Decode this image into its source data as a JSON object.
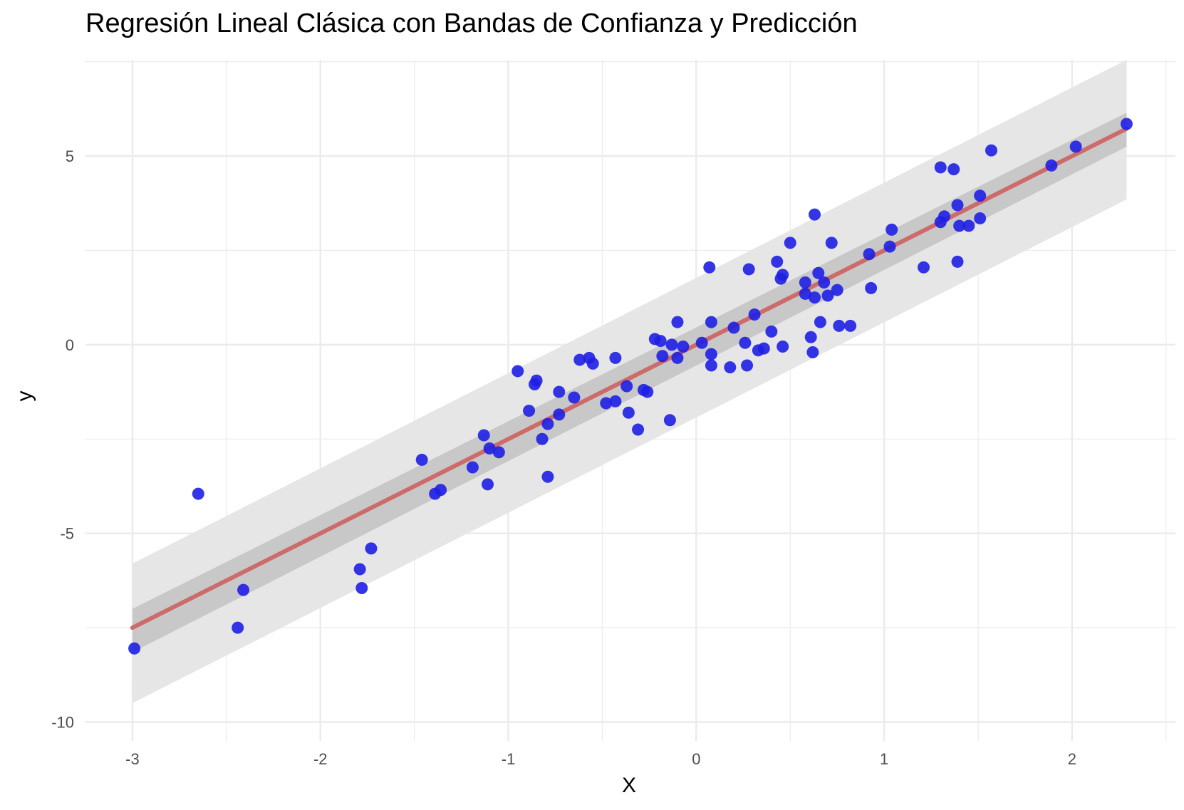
{
  "chart_data": {
    "type": "scatter",
    "title": "Regresión Lineal Clásica con Bandas de Confianza y Predicción",
    "xlabel": "X",
    "ylabel": "y",
    "xlim": [
      -3.25,
      2.55
    ],
    "ylim": [
      -10.5,
      7.55
    ],
    "x_ticks": [
      -3,
      -2,
      -1,
      0,
      1,
      2
    ],
    "x_tick_labels": [
      "-3",
      "-2",
      "-1",
      "0",
      "1",
      "2"
    ],
    "y_ticks": [
      -10,
      -5,
      0,
      5
    ],
    "y_tick_labels": [
      "-10",
      "-5",
      "0",
      "5"
    ],
    "grid": true,
    "colors": {
      "points": "#1f1fe6",
      "fit_line": "#cd6b6b",
      "confidence_band": "#bdbdbd",
      "prediction_band": "#e6e6e6",
      "grid": "#ebebeb"
    },
    "fit": {
      "intercept": 0.0,
      "slope": 2.5,
      "x_range": [
        -3,
        2.29
      ]
    },
    "confidence_band": {
      "x": [
        -3,
        2.29
      ],
      "lower": [
        -8.15,
        5.25
      ],
      "upper": [
        -7.0,
        6.15
      ]
    },
    "prediction_band": {
      "x": [
        -3,
        2.29
      ],
      "lower": [
        -9.5,
        3.85
      ],
      "upper": [
        -5.8,
        7.55
      ]
    },
    "points": [
      {
        "x": -2.99,
        "y": -8.05
      },
      {
        "x": -2.65,
        "y": -3.95
      },
      {
        "x": -2.44,
        "y": -7.5
      },
      {
        "x": -2.41,
        "y": -6.5
      },
      {
        "x": -1.79,
        "y": -5.95
      },
      {
        "x": -1.78,
        "y": -6.45
      },
      {
        "x": -1.73,
        "y": -5.4
      },
      {
        "x": -1.46,
        "y": -3.05
      },
      {
        "x": -1.39,
        "y": -3.95
      },
      {
        "x": -1.36,
        "y": -3.85
      },
      {
        "x": -1.19,
        "y": -3.25
      },
      {
        "x": -1.13,
        "y": -2.4
      },
      {
        "x": -1.11,
        "y": -3.7
      },
      {
        "x": -1.1,
        "y": -2.75
      },
      {
        "x": -1.05,
        "y": -2.85
      },
      {
        "x": -0.95,
        "y": -0.7
      },
      {
        "x": -0.89,
        "y": -1.75
      },
      {
        "x": -0.86,
        "y": -1.05
      },
      {
        "x": -0.85,
        "y": -0.95
      },
      {
        "x": -0.82,
        "y": -2.5
      },
      {
        "x": -0.79,
        "y": -2.1
      },
      {
        "x": -0.79,
        "y": -3.5
      },
      {
        "x": -0.73,
        "y": -1.25
      },
      {
        "x": -0.73,
        "y": -1.85
      },
      {
        "x": -0.65,
        "y": -1.4
      },
      {
        "x": -0.62,
        "y": -0.4
      },
      {
        "x": -0.57,
        "y": -0.35
      },
      {
        "x": -0.55,
        "y": -0.5
      },
      {
        "x": -0.48,
        "y": -1.55
      },
      {
        "x": -0.43,
        "y": -0.35
      },
      {
        "x": -0.43,
        "y": -1.5
      },
      {
        "x": -0.37,
        "y": -1.1
      },
      {
        "x": -0.36,
        "y": -1.8
      },
      {
        "x": -0.31,
        "y": -2.25
      },
      {
        "x": -0.28,
        "y": -1.2
      },
      {
        "x": -0.26,
        "y": -1.25
      },
      {
        "x": -0.22,
        "y": 0.15
      },
      {
        "x": -0.19,
        "y": 0.1
      },
      {
        "x": -0.18,
        "y": -0.3
      },
      {
        "x": -0.14,
        "y": -2.0
      },
      {
        "x": -0.13,
        "y": 0.0
      },
      {
        "x": -0.1,
        "y": 0.6
      },
      {
        "x": -0.1,
        "y": -0.35
      },
      {
        "x": -0.07,
        "y": -0.05
      },
      {
        "x": 0.03,
        "y": 0.05
      },
      {
        "x": 0.07,
        "y": 2.05
      },
      {
        "x": 0.08,
        "y": -0.25
      },
      {
        "x": 0.08,
        "y": -0.55
      },
      {
        "x": 0.08,
        "y": 0.6
      },
      {
        "x": 0.18,
        "y": -0.6
      },
      {
        "x": 0.2,
        "y": 0.45
      },
      {
        "x": 0.26,
        "y": 0.05
      },
      {
        "x": 0.27,
        "y": -0.55
      },
      {
        "x": 0.28,
        "y": 2.0
      },
      {
        "x": 0.31,
        "y": 0.8
      },
      {
        "x": 0.33,
        "y": -0.15
      },
      {
        "x": 0.36,
        "y": -0.1
      },
      {
        "x": 0.4,
        "y": 0.35
      },
      {
        "x": 0.43,
        "y": 2.2
      },
      {
        "x": 0.45,
        "y": 1.75
      },
      {
        "x": 0.46,
        "y": 1.85
      },
      {
        "x": 0.46,
        "y": -0.05
      },
      {
        "x": 0.5,
        "y": 2.7
      },
      {
        "x": 0.58,
        "y": 1.65
      },
      {
        "x": 0.58,
        "y": 1.35
      },
      {
        "x": 0.61,
        "y": 0.2
      },
      {
        "x": 0.62,
        "y": -0.2
      },
      {
        "x": 0.63,
        "y": 3.45
      },
      {
        "x": 0.63,
        "y": 1.25
      },
      {
        "x": 0.65,
        "y": 1.9
      },
      {
        "x": 0.66,
        "y": 0.6
      },
      {
        "x": 0.68,
        "y": 1.65
      },
      {
        "x": 0.7,
        "y": 1.3
      },
      {
        "x": 0.72,
        "y": 2.7
      },
      {
        "x": 0.75,
        "y": 1.45
      },
      {
        "x": 0.76,
        "y": 0.5
      },
      {
        "x": 0.82,
        "y": 0.5
      },
      {
        "x": 0.92,
        "y": 2.4
      },
      {
        "x": 0.93,
        "y": 1.5
      },
      {
        "x": 1.03,
        "y": 2.6
      },
      {
        "x": 1.04,
        "y": 3.05
      },
      {
        "x": 1.21,
        "y": 2.05
      },
      {
        "x": 1.3,
        "y": 4.7
      },
      {
        "x": 1.3,
        "y": 3.25
      },
      {
        "x": 1.32,
        "y": 3.4
      },
      {
        "x": 1.37,
        "y": 4.65
      },
      {
        "x": 1.39,
        "y": 3.7
      },
      {
        "x": 1.39,
        "y": 2.2
      },
      {
        "x": 1.4,
        "y": 3.15
      },
      {
        "x": 1.45,
        "y": 3.15
      },
      {
        "x": 1.51,
        "y": 3.35
      },
      {
        "x": 1.51,
        "y": 3.95
      },
      {
        "x": 1.57,
        "y": 5.15
      },
      {
        "x": 1.89,
        "y": 4.75
      },
      {
        "x": 2.02,
        "y": 5.25
      },
      {
        "x": 2.29,
        "y": 5.85
      }
    ]
  }
}
